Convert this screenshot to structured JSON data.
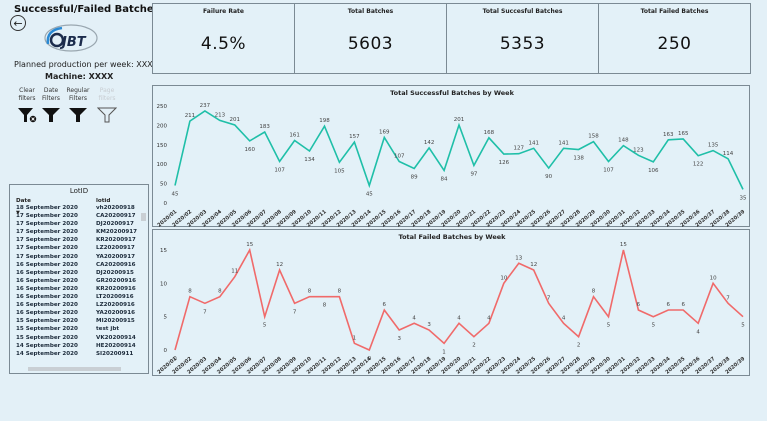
{
  "page": {
    "title": "Successful/Failed Batches",
    "planned_production": "Planned production per week: XXXX",
    "machine": "Machine: XXXX",
    "back_icon": "arrow-left-circle-icon",
    "logo_text": "JBT"
  },
  "filters": [
    {
      "label_line1": "Clear",
      "label_line2": "filters",
      "icon": "clear-filter-icon",
      "enabled": true
    },
    {
      "label_line1": "Date",
      "label_line2": "Filters",
      "icon": "filter-icon",
      "enabled": true
    },
    {
      "label_line1": "Regular",
      "label_line2": "Filters",
      "icon": "filter-icon",
      "enabled": true
    },
    {
      "label_line1": "Page",
      "label_line2": "filters",
      "icon": "filter-outline-icon",
      "enabled": false
    }
  ],
  "kpis": [
    {
      "label": "Failure Rate",
      "value": "4.5%"
    },
    {
      "label": "Total Batches",
      "value": "5603"
    },
    {
      "label": "Total Succesful Batches",
      "value": "5353"
    },
    {
      "label": "Total Failed Batches",
      "value": "250"
    }
  ],
  "lot_table": {
    "title": "LotID",
    "columns": [
      "Date",
      "lotid"
    ],
    "rows": [
      [
        "18 September 2020",
        "vh20200918"
      ],
      [
        "17 September 2020",
        "CA20200917"
      ],
      [
        "17 September 2020",
        "DJ20200917"
      ],
      [
        "17 September 2020",
        "KM20200917"
      ],
      [
        "17 September 2020",
        "KR20200917"
      ],
      [
        "17 September 2020",
        "LZ20200917"
      ],
      [
        "17 September 2020",
        "YA20200917"
      ],
      [
        "16 September 2020",
        "CA20200916"
      ],
      [
        "16 September 2020",
        "DJ20200915"
      ],
      [
        "16 September 2020",
        "GR20200916"
      ],
      [
        "16 September 2020",
        "KR20200916"
      ],
      [
        "16 September 2020",
        "LT20200916"
      ],
      [
        "16 September 2020",
        "LZ20200916"
      ],
      [
        "16 September 2020",
        "YA20200916"
      ],
      [
        "15 September 2020",
        "MI20200915"
      ],
      [
        "15 September 2020",
        "test jbt"
      ],
      [
        "15 September 2020",
        "VK20200914"
      ],
      [
        "14 September 2020",
        "HE20200914"
      ],
      [
        "14 September 2020",
        "SI20200911"
      ]
    ]
  },
  "chart_data": [
    {
      "type": "line",
      "title": "Total Successful Batches by Week",
      "color": "#1fbfa8",
      "xlabel": "",
      "ylabel": "",
      "ylim": [
        0,
        250
      ],
      "yticks": [
        0,
        50,
        100,
        150,
        200,
        250
      ],
      "grid": false,
      "categories": [
        "2020/01",
        "2020/02",
        "2020/03",
        "2020/04",
        "2020/05",
        "2020/06",
        "2020/07",
        "2020/08",
        "2020/09",
        "2020/10",
        "2020/11",
        "2020/12",
        "2020/13",
        "2020/14",
        "2020/15",
        "2020/16",
        "2020/17",
        "2020/18",
        "2020/19",
        "2020/20",
        "2020/21",
        "2020/22",
        "2020/23",
        "2020/24",
        "2020/25",
        "2020/26",
        "2020/27",
        "2020/28",
        "2020/29",
        "2020/30",
        "2020/31",
        "2020/32",
        "2020/33",
        "2020/34",
        "2020/35",
        "2020/36",
        "2020/37",
        "2020/38",
        "2020/39"
      ],
      "values": [
        45,
        211,
        237,
        213,
        201,
        160,
        183,
        107,
        161,
        134,
        198,
        105,
        157,
        45,
        169,
        107,
        89,
        142,
        84,
        201,
        97,
        168,
        126,
        127,
        141,
        90,
        141,
        138,
        158,
        107,
        148,
        123,
        106,
        163,
        165,
        122,
        135,
        114,
        35
      ]
    },
    {
      "type": "line",
      "title": "Total Failed Batches by Week",
      "color": "#f06a6a",
      "xlabel": "",
      "ylabel": "",
      "ylim": [
        0,
        15
      ],
      "yticks": [
        0,
        5,
        10,
        15
      ],
      "grid": false,
      "categories": [
        "2020/01",
        "2020/02",
        "2020/03",
        "2020/04",
        "2020/05",
        "2020/06",
        "2020/07",
        "2020/08",
        "2020/09",
        "2020/10",
        "2020/11",
        "2020/12",
        "2020/13",
        "2020/14",
        "2020/15",
        "2020/16",
        "2020/17",
        "2020/18",
        "2020/19",
        "2020/20",
        "2020/21",
        "2020/22",
        "2020/23",
        "2020/24",
        "2020/25",
        "2020/26",
        "2020/27",
        "2020/28",
        "2020/29",
        "2020/30",
        "2020/31",
        "2020/32",
        "2020/33",
        "2020/34",
        "2020/35",
        "2020/36",
        "2020/37",
        "2020/38",
        "2020/39"
      ],
      "values": [
        0,
        8,
        7,
        8,
        11,
        15,
        5,
        12,
        7,
        8,
        8,
        8,
        1,
        0,
        6,
        3,
        4,
        3,
        1,
        4,
        2,
        4,
        10,
        13,
        12,
        7,
        4,
        2,
        8,
        5,
        15,
        6,
        5,
        6,
        6,
        4,
        10,
        7,
        5
      ]
    }
  ]
}
